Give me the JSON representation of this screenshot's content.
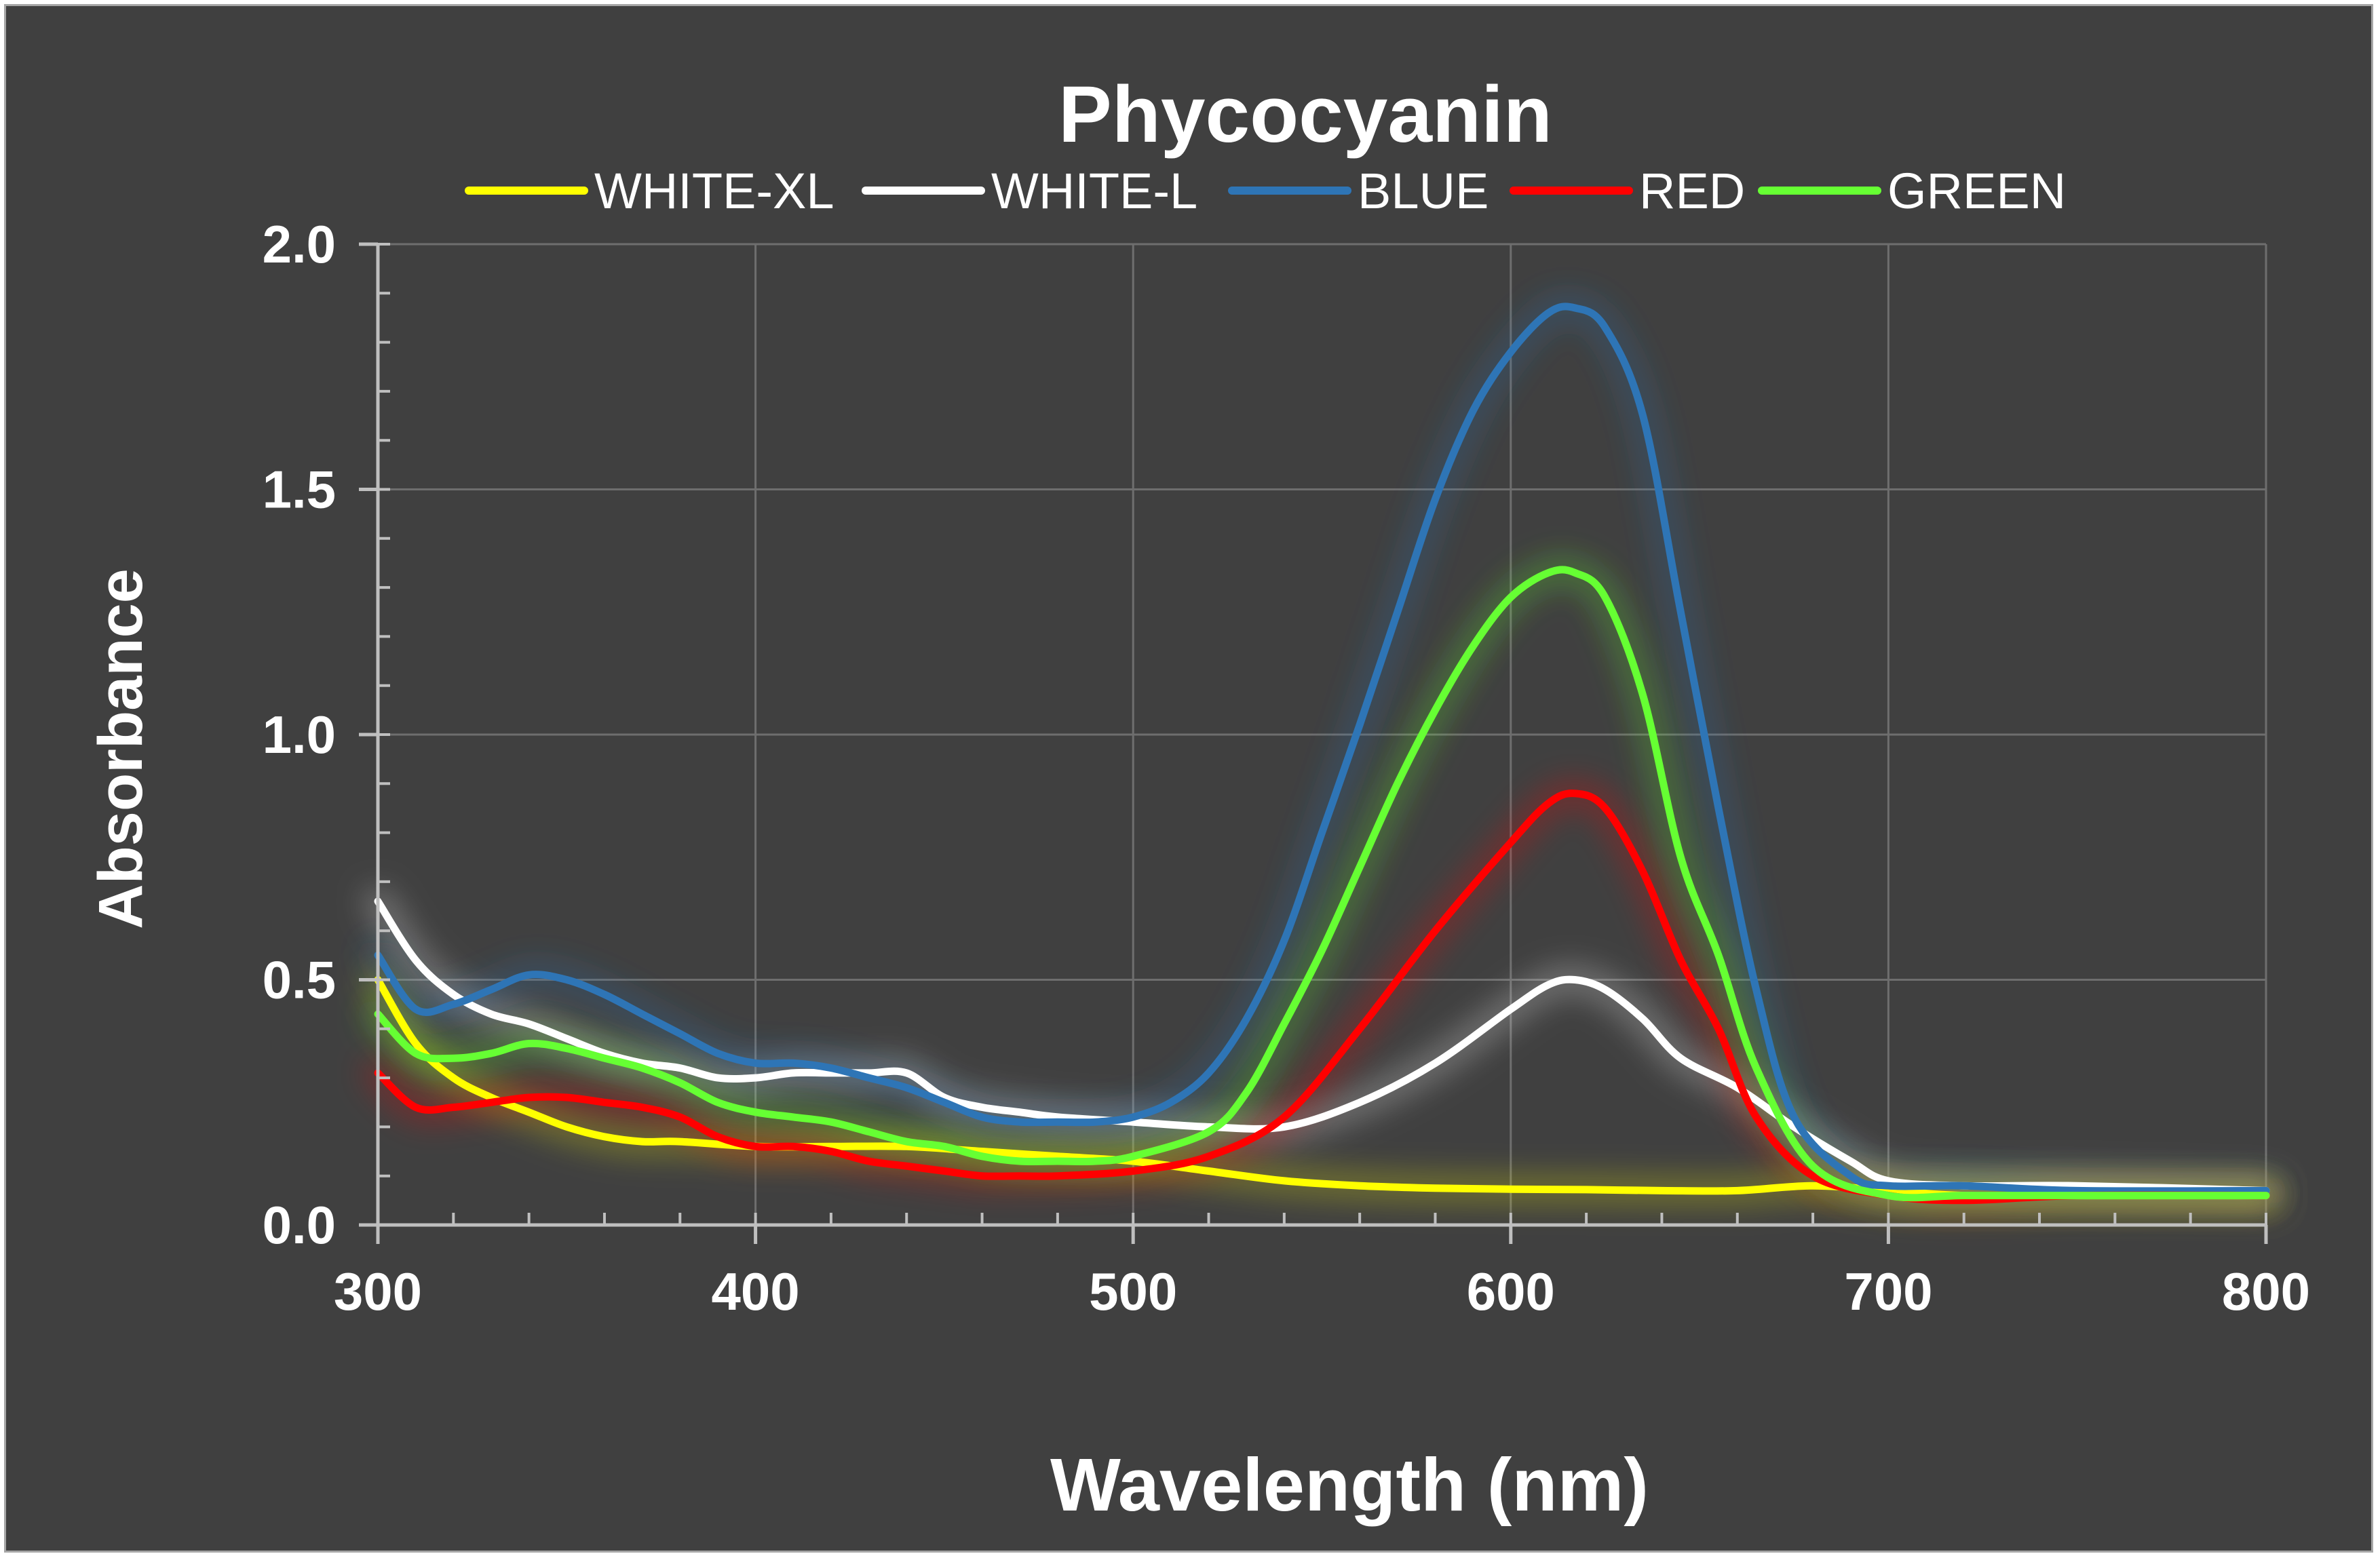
{
  "chart_data": {
    "type": "line",
    "title": "Phycocyanin",
    "xlabel": "Wavelength (nm)",
    "ylabel": "Absorbance",
    "xlim": [
      300,
      800
    ],
    "ylim": [
      0,
      2.0
    ],
    "x_ticks": [
      "300",
      "400",
      "500",
      "600",
      "700",
      "800"
    ],
    "y_ticks": [
      "0.0",
      "0.5",
      "1.0",
      "1.5",
      "2.0"
    ],
    "grid": true,
    "legend_position": "top",
    "series": [
      {
        "name": "WHITE-XL",
        "color": "#ffff00",
        "points": [
          [
            300,
            0.5
          ],
          [
            310,
            0.37
          ],
          [
            320,
            0.3
          ],
          [
            330,
            0.26
          ],
          [
            340,
            0.23
          ],
          [
            350,
            0.2
          ],
          [
            360,
            0.18
          ],
          [
            370,
            0.17
          ],
          [
            380,
            0.17
          ],
          [
            400,
            0.16
          ],
          [
            420,
            0.16
          ],
          [
            440,
            0.16
          ],
          [
            460,
            0.15
          ],
          [
            480,
            0.14
          ],
          [
            500,
            0.13
          ],
          [
            520,
            0.11
          ],
          [
            540,
            0.09
          ],
          [
            560,
            0.08
          ],
          [
            580,
            0.075
          ],
          [
            600,
            0.073
          ],
          [
            620,
            0.072
          ],
          [
            640,
            0.07
          ],
          [
            660,
            0.07
          ],
          [
            680,
            0.08
          ],
          [
            700,
            0.07
          ],
          [
            720,
            0.06
          ],
          [
            750,
            0.06
          ],
          [
            800,
            0.06
          ]
        ]
      },
      {
        "name": "WHITE-L",
        "color": "#ffffff",
        "points": [
          [
            300,
            0.66
          ],
          [
            310,
            0.54
          ],
          [
            320,
            0.47
          ],
          [
            330,
            0.43
          ],
          [
            340,
            0.41
          ],
          [
            350,
            0.38
          ],
          [
            360,
            0.35
          ],
          [
            370,
            0.33
          ],
          [
            380,
            0.32
          ],
          [
            390,
            0.3
          ],
          [
            400,
            0.3
          ],
          [
            410,
            0.31
          ],
          [
            420,
            0.31
          ],
          [
            430,
            0.31
          ],
          [
            440,
            0.31
          ],
          [
            450,
            0.26
          ],
          [
            460,
            0.24
          ],
          [
            470,
            0.23
          ],
          [
            480,
            0.22
          ],
          [
            500,
            0.21
          ],
          [
            520,
            0.2
          ],
          [
            540,
            0.2
          ],
          [
            560,
            0.25
          ],
          [
            580,
            0.33
          ],
          [
            600,
            0.44
          ],
          [
            610,
            0.49
          ],
          [
            617,
            0.5
          ],
          [
            625,
            0.48
          ],
          [
            635,
            0.42
          ],
          [
            645,
            0.34
          ],
          [
            660,
            0.28
          ],
          [
            675,
            0.2
          ],
          [
            690,
            0.13
          ],
          [
            700,
            0.09
          ],
          [
            720,
            0.08
          ],
          [
            750,
            0.08
          ],
          [
            800,
            0.07
          ]
        ]
      },
      {
        "name": "BLUE",
        "color": "#2e75b6",
        "points": [
          [
            300,
            0.55
          ],
          [
            310,
            0.44
          ],
          [
            320,
            0.45
          ],
          [
            330,
            0.48
          ],
          [
            340,
            0.51
          ],
          [
            350,
            0.5
          ],
          [
            360,
            0.47
          ],
          [
            370,
            0.43
          ],
          [
            380,
            0.39
          ],
          [
            390,
            0.35
          ],
          [
            400,
            0.33
          ],
          [
            410,
            0.33
          ],
          [
            420,
            0.32
          ],
          [
            430,
            0.3
          ],
          [
            440,
            0.28
          ],
          [
            450,
            0.25
          ],
          [
            460,
            0.22
          ],
          [
            470,
            0.21
          ],
          [
            480,
            0.21
          ],
          [
            490,
            0.21
          ],
          [
            500,
            0.22
          ],
          [
            510,
            0.25
          ],
          [
            520,
            0.31
          ],
          [
            530,
            0.42
          ],
          [
            540,
            0.58
          ],
          [
            550,
            0.8
          ],
          [
            560,
            1.02
          ],
          [
            570,
            1.25
          ],
          [
            580,
            1.48
          ],
          [
            590,
            1.66
          ],
          [
            600,
            1.78
          ],
          [
            610,
            1.86
          ],
          [
            617,
            1.87
          ],
          [
            625,
            1.83
          ],
          [
            635,
            1.65
          ],
          [
            645,
            1.25
          ],
          [
            655,
            0.85
          ],
          [
            665,
            0.48
          ],
          [
            675,
            0.22
          ],
          [
            690,
            0.1
          ],
          [
            700,
            0.08
          ],
          [
            720,
            0.08
          ],
          [
            750,
            0.07
          ],
          [
            800,
            0.07
          ]
        ]
      },
      {
        "name": "RED",
        "color": "#ff0000",
        "points": [
          [
            300,
            0.31
          ],
          [
            310,
            0.24
          ],
          [
            320,
            0.24
          ],
          [
            330,
            0.25
          ],
          [
            340,
            0.26
          ],
          [
            350,
            0.26
          ],
          [
            360,
            0.25
          ],
          [
            370,
            0.24
          ],
          [
            380,
            0.22
          ],
          [
            390,
            0.18
          ],
          [
            400,
            0.16
          ],
          [
            410,
            0.16
          ],
          [
            420,
            0.15
          ],
          [
            430,
            0.13
          ],
          [
            440,
            0.12
          ],
          [
            450,
            0.11
          ],
          [
            460,
            0.1
          ],
          [
            470,
            0.1
          ],
          [
            480,
            0.1
          ],
          [
            500,
            0.11
          ],
          [
            520,
            0.14
          ],
          [
            540,
            0.22
          ],
          [
            560,
            0.4
          ],
          [
            580,
            0.6
          ],
          [
            600,
            0.78
          ],
          [
            610,
            0.86
          ],
          [
            617,
            0.88
          ],
          [
            625,
            0.85
          ],
          [
            635,
            0.72
          ],
          [
            645,
            0.54
          ],
          [
            655,
            0.4
          ],
          [
            665,
            0.22
          ],
          [
            680,
            0.1
          ],
          [
            700,
            0.06
          ],
          [
            720,
            0.05
          ],
          [
            750,
            0.06
          ],
          [
            800,
            0.06
          ]
        ]
      },
      {
        "name": "GREEN",
        "color": "#66ff33",
        "points": [
          [
            300,
            0.43
          ],
          [
            310,
            0.35
          ],
          [
            320,
            0.34
          ],
          [
            330,
            0.35
          ],
          [
            340,
            0.37
          ],
          [
            350,
            0.36
          ],
          [
            360,
            0.34
          ],
          [
            370,
            0.32
          ],
          [
            380,
            0.29
          ],
          [
            390,
            0.25
          ],
          [
            400,
            0.23
          ],
          [
            410,
            0.22
          ],
          [
            420,
            0.21
          ],
          [
            430,
            0.19
          ],
          [
            440,
            0.17
          ],
          [
            450,
            0.16
          ],
          [
            460,
            0.14
          ],
          [
            470,
            0.13
          ],
          [
            480,
            0.13
          ],
          [
            490,
            0.13
          ],
          [
            500,
            0.14
          ],
          [
            520,
            0.19
          ],
          [
            530,
            0.27
          ],
          [
            540,
            0.41
          ],
          [
            550,
            0.56
          ],
          [
            560,
            0.73
          ],
          [
            570,
            0.9
          ],
          [
            580,
            1.05
          ],
          [
            590,
            1.18
          ],
          [
            600,
            1.28
          ],
          [
            610,
            1.33
          ],
          [
            617,
            1.33
          ],
          [
            625,
            1.28
          ],
          [
            635,
            1.08
          ],
          [
            645,
            0.75
          ],
          [
            655,
            0.55
          ],
          [
            665,
            0.32
          ],
          [
            680,
            0.12
          ],
          [
            700,
            0.06
          ],
          [
            720,
            0.06
          ],
          [
            750,
            0.06
          ],
          [
            800,
            0.06
          ]
        ]
      }
    ]
  }
}
